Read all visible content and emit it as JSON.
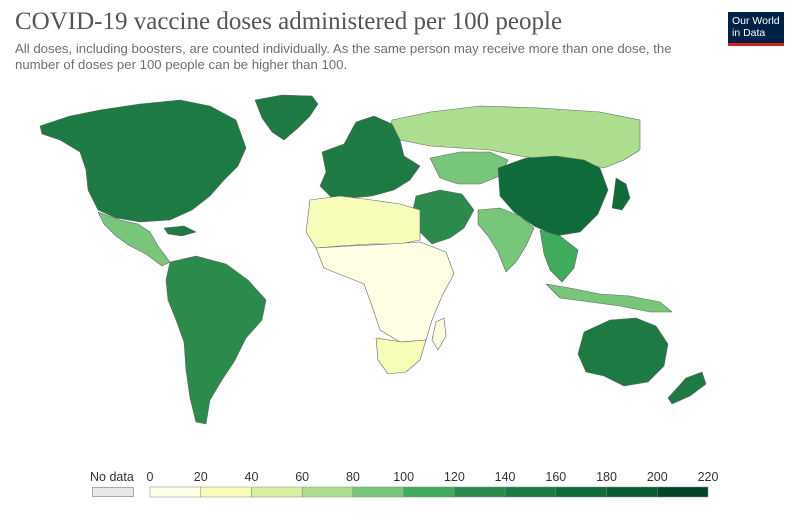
{
  "header": {
    "title": "COVID-19 vaccine doses administered per 100 people",
    "subtitle": "All doses, including boosters, are counted individually. As the same person may receive more than one dose, the number of doses per 100 people can be higher than 100."
  },
  "logo": {
    "line1": "Our World",
    "line2": "in Data"
  },
  "colors": {
    "no_data": "#e8e8e8",
    "ocean": "#ffffff",
    "border": "#666666",
    "scale": [
      "#ffffe5",
      "#f7fcb9",
      "#d9f0a3",
      "#addd8e",
      "#78c679",
      "#41ab5d",
      "#2b8b4c",
      "#1d7a44",
      "#0f6b3a",
      "#0a5b31",
      "#004529"
    ]
  },
  "legend": {
    "no_data_label": "No data",
    "ticks": [
      "0",
      "20",
      "40",
      "60",
      "80",
      "100",
      "120",
      "140",
      "160",
      "180",
      "200",
      "220"
    ]
  },
  "chart_data": {
    "type": "choropleth",
    "scale_bins": [
      0,
      20,
      40,
      60,
      80,
      100,
      120,
      140,
      160,
      180,
      200,
      220
    ],
    "regions": [
      {
        "id": "north-america",
        "bin": 7
      },
      {
        "id": "central-america-mexico",
        "bin": 4
      },
      {
        "id": "south-america",
        "bin": 6
      },
      {
        "id": "greenland",
        "bin": 7
      },
      {
        "id": "europe",
        "bin": 7
      },
      {
        "id": "russia",
        "bin": 3
      },
      {
        "id": "central-asia",
        "bin": 4
      },
      {
        "id": "china",
        "bin": 8
      },
      {
        "id": "india",
        "bin": 4
      },
      {
        "id": "southeast-asia",
        "bin": 5
      },
      {
        "id": "middle-east",
        "bin": 6
      },
      {
        "id": "north-africa",
        "bin": 1
      },
      {
        "id": "sub-saharan-africa",
        "bin": 0
      },
      {
        "id": "southern-africa",
        "bin": 1
      },
      {
        "id": "australia",
        "bin": 7
      },
      {
        "id": "new-zealand",
        "bin": 7
      },
      {
        "id": "japan",
        "bin": 8
      },
      {
        "id": "indonesia",
        "bin": 4
      }
    ]
  }
}
